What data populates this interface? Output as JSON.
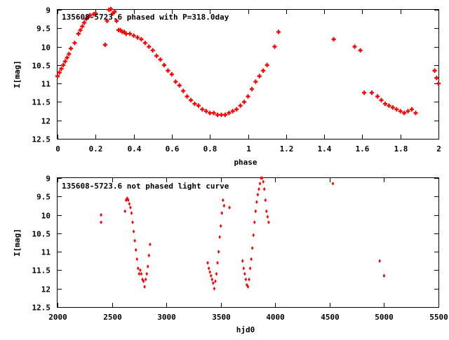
{
  "colors": {
    "points": "#ff0000",
    "axes": "#000000",
    "background": "#ffffff"
  },
  "chart_data": [
    {
      "type": "scatter",
      "title": "135608-5723.6 phased with P=318.0day",
      "xlabel": "phase",
      "ylabel": "I[mag]",
      "xlim": [
        0,
        2
      ],
      "ylim": [
        12.5,
        9
      ],
      "y_inverted": true,
      "xticks": [
        "0",
        "0.2",
        "0.4",
        "0.6",
        "0.8",
        "1",
        "1.2",
        "1.4",
        "1.6",
        "1.8",
        "2"
      ],
      "yticks": [
        "9",
        "9.5",
        "10",
        "10.5",
        "11",
        "11.5",
        "12",
        "12.5"
      ],
      "grid": false,
      "marker": "cross",
      "series": [
        {
          "x": [
            0.0,
            0.01,
            0.02,
            0.03,
            0.04,
            0.05,
            0.06,
            0.07,
            0.09,
            0.11,
            0.12,
            0.13,
            0.14,
            0.15,
            0.16,
            0.17,
            0.19,
            0.2,
            0.25,
            0.26,
            0.27,
            0.28,
            0.29,
            0.3,
            0.31,
            0.32,
            0.33,
            0.34,
            0.35,
            0.36,
            0.38,
            0.4,
            0.42,
            0.44,
            0.46,
            0.48,
            0.5,
            0.52,
            0.54,
            0.56,
            0.58,
            0.6,
            0.62,
            0.64,
            0.66,
            0.68,
            0.7,
            0.72,
            0.74,
            0.76,
            0.78,
            0.8,
            0.82,
            0.84,
            0.86,
            0.88,
            0.9,
            0.92,
            0.94,
            0.96,
            0.98,
            1.0,
            1.02,
            1.04,
            1.06,
            1.08,
            1.1,
            1.14,
            1.16,
            1.45,
            1.56,
            1.59,
            1.61,
            1.65,
            1.68,
            1.7,
            1.72,
            1.74,
            1.76,
            1.78,
            1.8,
            1.82,
            1.84,
            1.86,
            1.88,
            1.98,
            1.99,
            2.0
          ],
          "y": [
            10.8,
            10.7,
            10.6,
            10.5,
            10.4,
            10.3,
            10.2,
            10.05,
            9.9,
            9.65,
            9.55,
            9.45,
            9.35,
            9.25,
            9.2,
            9.15,
            9.12,
            9.1,
            9.95,
            9.3,
            9.0,
            8.98,
            9.1,
            9.05,
            9.3,
            9.55,
            9.55,
            9.6,
            9.6,
            9.65,
            9.65,
            9.7,
            9.75,
            9.8,
            9.9,
            10.0,
            10.1,
            10.25,
            10.35,
            10.5,
            10.65,
            10.75,
            10.95,
            11.05,
            11.2,
            11.35,
            11.45,
            11.55,
            11.6,
            11.7,
            11.75,
            11.8,
            11.8,
            11.85,
            11.85,
            11.85,
            11.8,
            11.75,
            11.7,
            11.6,
            11.5,
            11.35,
            11.15,
            10.95,
            10.8,
            10.65,
            10.5,
            10.0,
            9.6,
            9.8,
            10.0,
            10.1,
            11.25,
            11.25,
            11.35,
            11.45,
            11.55,
            11.6,
            11.65,
            11.7,
            11.75,
            11.8,
            11.75,
            11.7,
            11.8,
            10.65,
            10.85,
            11.0
          ]
        }
      ]
    },
    {
      "type": "scatter",
      "title": "135608-5723.6 not phased light curve",
      "xlabel": "hjd0",
      "ylabel": "I[mag]",
      "xlim": [
        2000,
        5500
      ],
      "ylim": [
        12.5,
        9
      ],
      "y_inverted": true,
      "xticks": [
        "2000",
        "2500",
        "3000",
        "3500",
        "4000",
        "4500",
        "5000",
        "5500"
      ],
      "yticks": [
        "9",
        "9.5",
        "10",
        "10.5",
        "11",
        "11.5",
        "12",
        "12.5"
      ],
      "grid": false,
      "marker": "diamond",
      "series": [
        {
          "x": [
            2400,
            2400,
            2620,
            2630,
            2640,
            2650,
            2660,
            2670,
            2680,
            2690,
            2700,
            2710,
            2720,
            2730,
            2740,
            2750,
            2760,
            2770,
            2780,
            2790,
            2800,
            2810,
            2820,
            2830,
            2840,
            2850,
            3380,
            3390,
            3400,
            3410,
            3420,
            3430,
            3440,
            3450,
            3460,
            3470,
            3480,
            3490,
            3500,
            3510,
            3520,
            3530,
            3580,
            3700,
            3710,
            3720,
            3730,
            3740,
            3750,
            3760,
            3770,
            3780,
            3790,
            3800,
            3810,
            3820,
            3830,
            3840,
            3850,
            3860,
            3870,
            3880,
            3890,
            3900,
            3910,
            3920,
            3930,
            3940,
            4530,
            4960,
            5000
          ],
          "y": [
            10.0,
            10.2,
            9.9,
            9.6,
            9.55,
            9.6,
            9.7,
            9.8,
            9.95,
            10.2,
            10.45,
            10.7,
            10.95,
            11.2,
            11.45,
            11.6,
            11.5,
            11.6,
            11.75,
            11.8,
            11.95,
            11.75,
            11.6,
            11.4,
            11.1,
            10.8,
            11.3,
            11.45,
            11.55,
            11.65,
            11.75,
            11.85,
            12.0,
            11.8,
            11.6,
            11.3,
            11.0,
            10.6,
            10.3,
            9.95,
            9.6,
            9.75,
            9.8,
            11.25,
            11.45,
            11.6,
            11.75,
            11.9,
            11.95,
            11.75,
            11.45,
            11.2,
            10.9,
            10.55,
            10.2,
            9.9,
            9.65,
            9.45,
            9.3,
            9.15,
            9.0,
            9.0,
            9.1,
            9.3,
            9.6,
            9.9,
            10.05,
            10.2,
            9.15,
            11.25,
            11.65
          ]
        }
      ]
    }
  ]
}
